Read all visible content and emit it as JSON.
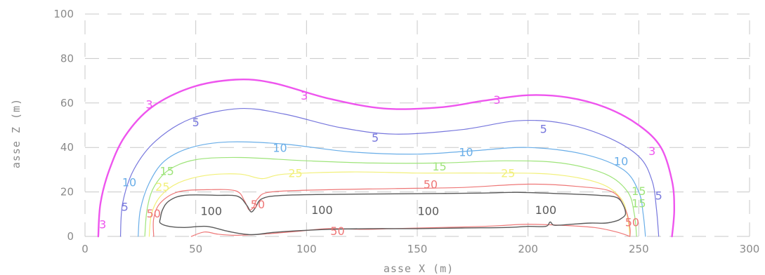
{
  "chart_data": {
    "type": "contour",
    "title": "",
    "xlabel": "asse X (m)",
    "ylabel": "asse Z (m)",
    "xlim": [
      0,
      300
    ],
    "ylim": [
      0,
      100
    ],
    "x_ticks": [
      "0",
      "50",
      "100",
      "150",
      "200",
      "250",
      "300"
    ],
    "y_ticks": [
      "0",
      "20",
      "40",
      "60",
      "80",
      "100"
    ],
    "grid": true,
    "series": [
      {
        "level": "3",
        "color": "#ee55ee",
        "width": 2.4,
        "points": [
          [
            6,
            0
          ],
          [
            7,
            15
          ],
          [
            11,
            30
          ],
          [
            18,
            45
          ],
          [
            30,
            58
          ],
          [
            48,
            67
          ],
          [
            68,
            70.5
          ],
          [
            85,
            69
          ],
          [
            110,
            62
          ],
          [
            135,
            57.5
          ],
          [
            160,
            58
          ],
          [
            180,
            61
          ],
          [
            200,
            63.5
          ],
          [
            218,
            62.5
          ],
          [
            235,
            58
          ],
          [
            250,
            50
          ],
          [
            260,
            40
          ],
          [
            265,
            25
          ],
          [
            266,
            12
          ],
          [
            265,
            0
          ]
        ],
        "labels": [
          {
            "text": "3",
            "x": 29,
            "y": 59
          },
          {
            "text": "3",
            "x": 99,
            "y": 63
          },
          {
            "text": "3",
            "x": 186,
            "y": 61
          },
          {
            "text": "3",
            "x": 256,
            "y": 38
          },
          {
            "text": "3",
            "x": 8,
            "y": 5
          }
        ]
      },
      {
        "level": "5",
        "color": "#7777dd",
        "width": 1.2,
        "points": [
          [
            16,
            0
          ],
          [
            17,
            15
          ],
          [
            22,
            30
          ],
          [
            32,
            43
          ],
          [
            48,
            53
          ],
          [
            70,
            57.5
          ],
          [
            90,
            55
          ],
          [
            115,
            49
          ],
          [
            140,
            46
          ],
          [
            170,
            48
          ],
          [
            195,
            52
          ],
          [
            215,
            51
          ],
          [
            235,
            45
          ],
          [
            250,
            36
          ],
          [
            256,
            25
          ],
          [
            258,
            12
          ],
          [
            259,
            0
          ]
        ],
        "labels": [
          {
            "text": "5",
            "x": 50,
            "y": 51
          },
          {
            "text": "5",
            "x": 131,
            "y": 44
          },
          {
            "text": "5",
            "x": 207,
            "y": 48
          },
          {
            "text": "5",
            "x": 259,
            "y": 18
          },
          {
            "text": "5",
            "x": 18,
            "y": 13
          }
        ]
      },
      {
        "level": "10",
        "color": "#6aaee8",
        "width": 1.2,
        "points": [
          [
            24,
            0
          ],
          [
            25,
            12
          ],
          [
            29,
            24
          ],
          [
            36,
            34
          ],
          [
            48,
            40
          ],
          [
            65,
            42.5
          ],
          [
            90,
            41.5
          ],
          [
            120,
            38
          ],
          [
            150,
            37
          ],
          [
            175,
            38.5
          ],
          [
            200,
            40
          ],
          [
            225,
            37
          ],
          [
            243,
            30
          ],
          [
            250,
            20
          ],
          [
            252,
            10
          ],
          [
            253,
            0
          ]
        ],
        "labels": [
          {
            "text": "10",
            "x": 88,
            "y": 39.5
          },
          {
            "text": "10",
            "x": 172,
            "y": 37.5
          },
          {
            "text": "10",
            "x": 242,
            "y": 33.5
          },
          {
            "text": "10",
            "x": 20,
            "y": 24
          }
        ]
      },
      {
        "level": "15",
        "color": "#9ee47a",
        "width": 1.2,
        "points": [
          [
            27,
            0
          ],
          [
            28,
            12
          ],
          [
            31,
            22
          ],
          [
            38,
            30
          ],
          [
            50,
            34.5
          ],
          [
            70,
            35.5
          ],
          [
            100,
            34
          ],
          [
            130,
            33
          ],
          [
            160,
            33
          ],
          [
            190,
            34
          ],
          [
            215,
            33
          ],
          [
            235,
            28
          ],
          [
            245,
            20
          ],
          [
            248,
            10
          ],
          [
            249,
            0
          ]
        ],
        "labels": [
          {
            "text": "15",
            "x": 37,
            "y": 29
          },
          {
            "text": "15",
            "x": 160,
            "y": 31
          },
          {
            "text": "15",
            "x": 250,
            "y": 20
          },
          {
            "text": "15",
            "x": 250,
            "y": 14.5
          }
        ]
      },
      {
        "level": "25",
        "color": "#f2f07a",
        "width": 1.2,
        "points": [
          [
            29,
            0
          ],
          [
            30,
            10
          ],
          [
            34,
            18
          ],
          [
            42,
            24
          ],
          [
            55,
            27.5
          ],
          [
            70,
            28
          ],
          [
            80,
            26
          ],
          [
            90,
            28
          ],
          [
            120,
            29
          ],
          [
            150,
            28.5
          ],
          [
            180,
            28.5
          ],
          [
            210,
            28
          ],
          [
            232,
            24
          ],
          [
            242,
            17
          ],
          [
            245,
            8
          ],
          [
            246,
            0
          ]
        ],
        "labels": [
          {
            "text": "25",
            "x": 35,
            "y": 22
          },
          {
            "text": "25",
            "x": 95,
            "y": 28
          },
          {
            "text": "25",
            "x": 191,
            "y": 28
          }
        ]
      },
      {
        "level": "50",
        "color": "#ee7777",
        "width": 1.2,
        "points": [
          [
            31,
            0
          ],
          [
            31,
            8
          ],
          [
            34,
            15
          ],
          [
            42,
            20
          ],
          [
            55,
            21
          ],
          [
            68,
            20.5
          ],
          [
            72,
            16
          ],
          [
            74,
            12
          ],
          [
            76,
            13
          ],
          [
            78,
            17
          ],
          [
            84,
            20
          ],
          [
            110,
            21
          ],
          [
            140,
            21.5
          ],
          [
            170,
            22
          ],
          [
            200,
            23.5
          ],
          [
            222,
            22.5
          ],
          [
            238,
            20
          ],
          [
            244,
            12
          ],
          [
            246,
            4
          ],
          [
            246,
            0
          ]
        ],
        "labels": [
          {
            "text": "50",
            "x": 78,
            "y": 14
          },
          {
            "text": "50",
            "x": 156,
            "y": 23
          },
          {
            "text": "50",
            "x": 31,
            "y": 10
          },
          {
            "text": "50",
            "x": 114,
            "y": 2
          },
          {
            "text": "50",
            "x": 247,
            "y": 6
          }
        ]
      },
      {
        "level": "50",
        "color": "#ee7777",
        "width": 1.2,
        "points": [
          [
            48,
            0
          ],
          [
            54,
            2
          ],
          [
            60,
            1
          ],
          [
            68,
            0.5
          ],
          [
            80,
            1
          ],
          [
            95,
            2.2
          ],
          [
            110,
            3.5
          ],
          [
            125,
            3.2
          ],
          [
            140,
            3.5
          ],
          [
            160,
            4
          ],
          [
            180,
            4.5
          ],
          [
            190,
            5
          ],
          [
            200,
            5.5
          ],
          [
            215,
            5
          ],
          [
            230,
            4
          ],
          [
            240,
            2
          ],
          [
            246,
            0
          ]
        ],
        "labels": []
      },
      {
        "level": "100",
        "color": "#5a5a5a",
        "width": 1.4,
        "points": [
          [
            34,
            8
          ],
          [
            35,
            12
          ],
          [
            38,
            16
          ],
          [
            45,
            18.5
          ],
          [
            60,
            18.5
          ],
          [
            69,
            18
          ],
          [
            73,
            14
          ],
          [
            75,
            11
          ],
          [
            77,
            13
          ],
          [
            80,
            17
          ],
          [
            90,
            18.5
          ],
          [
            120,
            19
          ],
          [
            150,
            19.2
          ],
          [
            180,
            19.5
          ],
          [
            195,
            19.8
          ],
          [
            215,
            19.2
          ],
          [
            232,
            18.5
          ],
          [
            240,
            17.5
          ],
          [
            243,
            14
          ],
          [
            244,
            10
          ],
          [
            242,
            8
          ],
          [
            240,
            7
          ],
          [
            235,
            6
          ],
          [
            228,
            6
          ],
          [
            220,
            5.5
          ],
          [
            212,
            5
          ],
          [
            210,
            6.5
          ],
          [
            208,
            4.5
          ],
          [
            200,
            4.5
          ],
          [
            190,
            4
          ],
          [
            170,
            3.8
          ],
          [
            150,
            3.5
          ],
          [
            130,
            3.5
          ],
          [
            110,
            3.2
          ],
          [
            95,
            2.5
          ],
          [
            85,
            1.8
          ],
          [
            75,
            0.8
          ],
          [
            65,
            2.2
          ],
          [
            55,
            4.5
          ],
          [
            45,
            4
          ],
          [
            38,
            4.5
          ],
          [
            34,
            6
          ],
          [
            34,
            8
          ]
        ],
        "labels": [
          {
            "text": "100",
            "x": 57,
            "y": 11
          },
          {
            "text": "100",
            "x": 107,
            "y": 11.5
          },
          {
            "text": "100",
            "x": 155,
            "y": 11
          },
          {
            "text": "100",
            "x": 208,
            "y": 11.5
          }
        ]
      }
    ]
  }
}
